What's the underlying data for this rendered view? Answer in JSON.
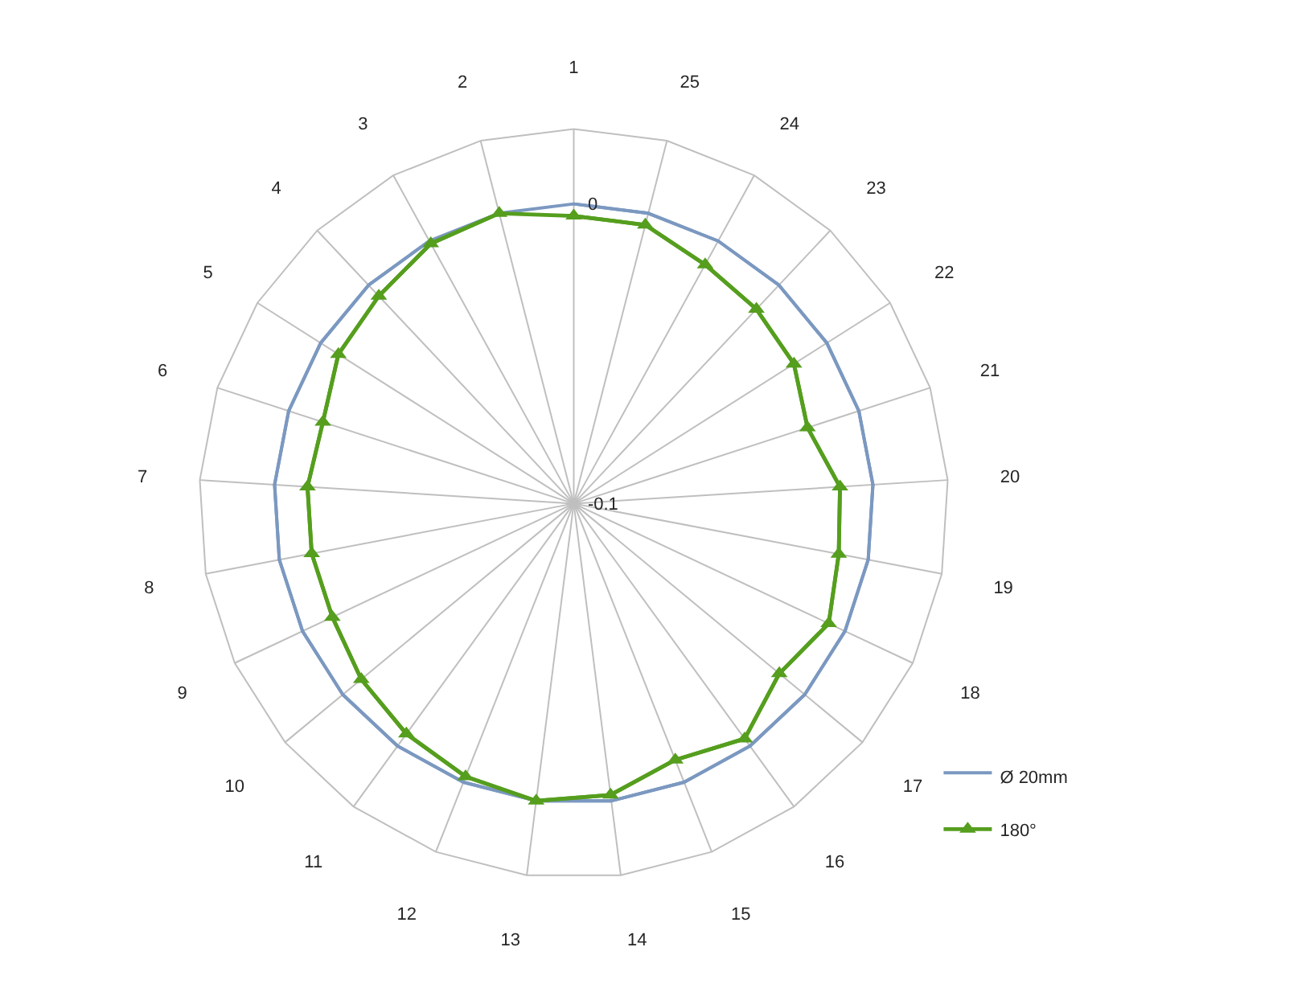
{
  "chart_data": {
    "type": "radar",
    "categories": [
      "1",
      "25",
      "24",
      "23",
      "22",
      "21",
      "20",
      "19",
      "18",
      "17",
      "16",
      "15",
      "14",
      "13",
      "12",
      "11",
      "10",
      "9",
      "8",
      "7",
      "6",
      "5",
      "4",
      "3",
      "2"
    ],
    "series": [
      {
        "name": "Ø 20mm",
        "color": "#7b98c0",
        "marker": "none",
        "values": [
          0,
          0,
          0,
          0,
          0,
          0,
          0,
          0,
          0,
          0,
          0,
          0,
          0,
          0,
          0,
          0,
          0,
          0,
          0,
          0,
          0,
          0,
          0,
          0,
          0
        ]
      },
      {
        "name": "180°",
        "color": "#559e1e",
        "marker": "triangle",
        "values": [
          -0.004,
          -0.004,
          -0.009,
          -0.011,
          -0.013,
          -0.018,
          -0.011,
          -0.01,
          -0.006,
          -0.011,
          -0.003,
          -0.008,
          -0.002,
          0.0,
          -0.002,
          -0.005,
          -0.008,
          -0.011,
          -0.011,
          -0.011,
          -0.012,
          -0.007,
          -0.005,
          -0.001,
          0.0
        ]
      }
    ],
    "ylim": [
      -0.1,
      0.025
    ],
    "yticks": [
      -0.1,
      0
    ],
    "grid": "x",
    "legend": "bottom right"
  }
}
